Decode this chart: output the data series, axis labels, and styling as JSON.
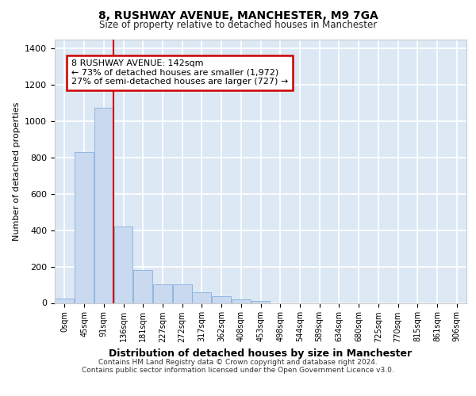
{
  "title1": "8, RUSHWAY AVENUE, MANCHESTER, M9 7GA",
  "title2": "Size of property relative to detached houses in Manchester",
  "xlabel": "Distribution of detached houses by size in Manchester",
  "ylabel": "Number of detached properties",
  "bar_values": [
    25,
    830,
    1075,
    420,
    180,
    103,
    103,
    58,
    38,
    20,
    10,
    0,
    0,
    0,
    0,
    0,
    0,
    0,
    0,
    0
  ],
  "bar_labels": [
    "0sqm",
    "45sqm",
    "91sqm",
    "136sqm",
    "181sqm",
    "227sqm",
    "272sqm",
    "317sqm",
    "362sqm",
    "408sqm",
    "453sqm",
    "498sqm",
    "544sqm",
    "589sqm",
    "634sqm",
    "680sqm",
    "725sqm",
    "770sqm",
    "815sqm",
    "861sqm",
    "906sqm"
  ],
  "bar_color": "#c8d9f0",
  "bar_edge_color": "#8ab0d8",
  "vline_pos": 2.5,
  "vline_color": "#cc0000",
  "ylim": [
    0,
    1450
  ],
  "yticks": [
    0,
    200,
    400,
    600,
    800,
    1000,
    1200,
    1400
  ],
  "annotation_text": "8 RUSHWAY AVENUE: 142sqm\n← 73% of detached houses are smaller (1,972)\n27% of semi-detached houses are larger (727) →",
  "ann_box_facecolor": "#ffffff",
  "ann_box_edgecolor": "#cc0000",
  "fig_bg": "#ffffff",
  "plot_bg": "#dde8f5",
  "grid_color": "#ffffff",
  "footer_line1": "Contains HM Land Registry data © Crown copyright and database right 2024.",
  "footer_line2": "Contains public sector information licensed under the Open Government Licence v3.0."
}
